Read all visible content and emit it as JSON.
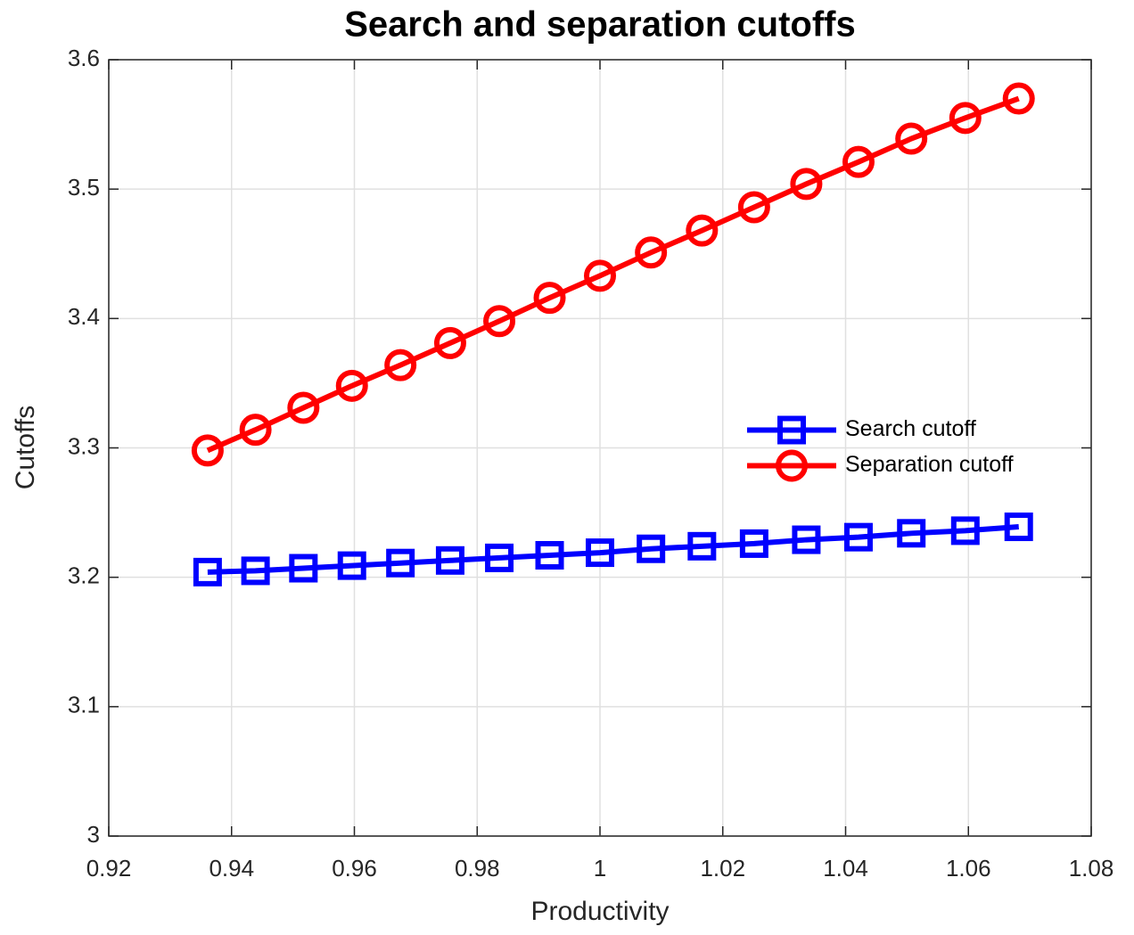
{
  "chart_data": {
    "type": "line",
    "title": "Search and separation cutoffs",
    "x_label": "Productivity",
    "y_label": "Cutoffs",
    "x": [
      0.9361,
      0.9439,
      0.9517,
      0.9596,
      0.9675,
      0.9756,
      0.9836,
      0.9918,
      1.0,
      1.0083,
      1.0166,
      1.0251,
      1.0336,
      1.0421,
      1.0507,
      1.0595,
      1.0682
    ],
    "series": [
      {
        "name": "Search cutoff",
        "color": "#0000ff",
        "marker": "square",
        "values": [
          3.204,
          3.205,
          3.207,
          3.209,
          3.211,
          3.213,
          3.215,
          3.217,
          3.219,
          3.222,
          3.224,
          3.226,
          3.229,
          3.231,
          3.234,
          3.236,
          3.239
        ]
      },
      {
        "name": "Separation cutoff",
        "color": "#ff0000",
        "marker": "circle",
        "values": [
          3.298,
          3.314,
          3.331,
          3.348,
          3.364,
          3.381,
          3.398,
          3.416,
          3.433,
          3.451,
          3.468,
          3.486,
          3.504,
          3.521,
          3.539,
          3.555,
          3.57
        ]
      }
    ],
    "xlim": [
      0.92,
      1.08
    ],
    "xticks": [
      0.92,
      0.94,
      0.96,
      0.98,
      1,
      1.02,
      1.04,
      1.06,
      1.08
    ],
    "ylim": [
      3,
      3.6
    ],
    "yticks": [
      3,
      3.1,
      3.2,
      3.3,
      3.4,
      3.5,
      3.6
    ],
    "grid": true,
    "legend_position": "east"
  }
}
